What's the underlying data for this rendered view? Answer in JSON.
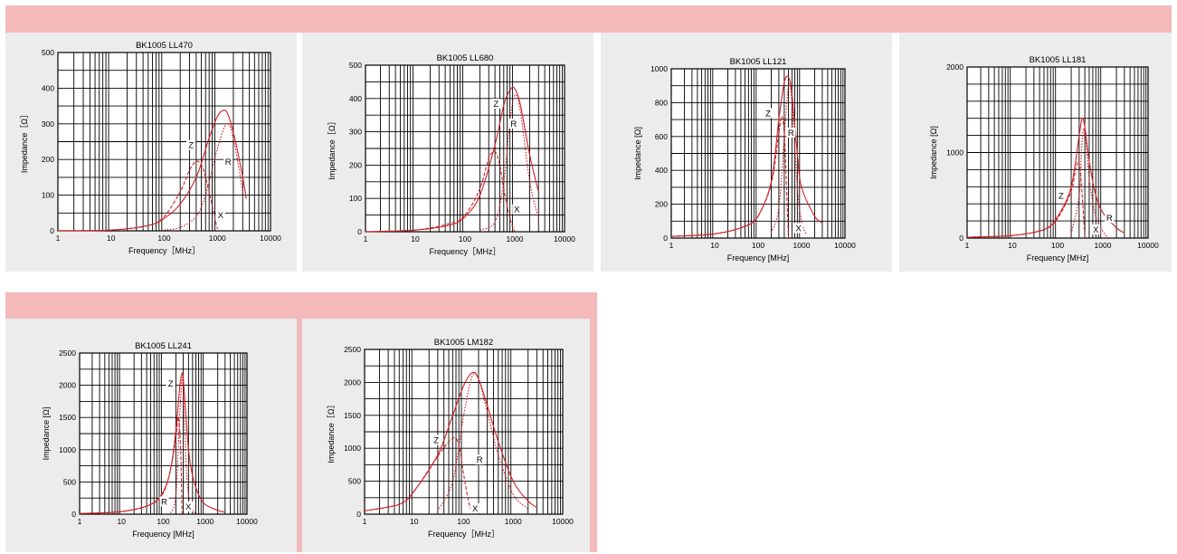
{
  "colors": {
    "band": "#f4b9ba",
    "panel": "#ececec",
    "curve": "#d11f26",
    "grid": "#000000"
  },
  "chart_data": [
    {
      "type": "line",
      "title": "BK1005  LL470",
      "xlabel": "Frequency［MHz］",
      "ylabel": "Impedance［Ω］",
      "x_scale": "log",
      "xlim": [
        1,
        10000
      ],
      "ylim": [
        0,
        500
      ],
      "x_ticks": [
        {
          "v": 1,
          "l": "1"
        },
        {
          "v": 10,
          "l": "10"
        },
        {
          "v": 100,
          "l": "100"
        },
        {
          "v": 1000,
          "l": "1000"
        },
        {
          "v": 10000,
          "l": "10000"
        }
      ],
      "y_ticks": [
        {
          "v": 0,
          "l": "0"
        },
        {
          "v": 100,
          "l": "100"
        },
        {
          "v": 200,
          "l": "200"
        },
        {
          "v": 300,
          "l": "300"
        },
        {
          "v": 400,
          "l": "400"
        },
        {
          "v": 500,
          "l": "500"
        }
      ],
      "series": [
        {
          "name": "Z",
          "style": "solid",
          "x": [
            1,
            10,
            50,
            100,
            200,
            400,
            700,
            1000,
            1300,
            1600,
            2200,
            3000,
            3500
          ],
          "y": [
            0,
            2,
            15,
            35,
            75,
            150,
            260,
            320,
            338,
            325,
            250,
            150,
            90
          ]
        },
        {
          "name": "R",
          "style": "dotted",
          "x": [
            100,
            200,
            400,
            600,
            1000,
            1500,
            2000,
            3000
          ],
          "y": [
            2,
            10,
            40,
            100,
            230,
            300,
            260,
            110
          ]
        },
        {
          "name": "X",
          "style": "dashed",
          "x": [
            1,
            10,
            50,
            100,
            200,
            300,
            400,
            500,
            600,
            700,
            800,
            1000
          ],
          "y": [
            0,
            2,
            15,
            40,
            110,
            170,
            195,
            185,
            150,
            110,
            70,
            5
          ]
        }
      ],
      "curve_labels": [
        {
          "t": "Z",
          "x": 320,
          "y": 232
        },
        {
          "t": "R",
          "x": 1600,
          "y": 185
        },
        {
          "t": "X",
          "x": 1150,
          "y": 35
        }
      ]
    },
    {
      "type": "line",
      "title": "BK1005  LL680",
      "xlabel": "Frequency［MHz］",
      "ylabel": "Impedance［Ω］",
      "x_scale": "log",
      "xlim": [
        1,
        10000
      ],
      "ylim": [
        0,
        500
      ],
      "x_ticks": [
        {
          "v": 1,
          "l": "1"
        },
        {
          "v": 10,
          "l": "10"
        },
        {
          "v": 100,
          "l": "100"
        },
        {
          "v": 1000,
          "l": "1000"
        },
        {
          "v": 10000,
          "l": "10000"
        }
      ],
      "y_ticks": [
        {
          "v": 0,
          "l": "0"
        },
        {
          "v": 100,
          "l": "100"
        },
        {
          "v": 200,
          "l": "200"
        },
        {
          "v": 300,
          "l": "300"
        },
        {
          "v": 400,
          "l": "400"
        },
        {
          "v": 500,
          "l": "500"
        }
      ],
      "series": [
        {
          "name": "Z",
          "style": "solid",
          "x": [
            1,
            10,
            50,
            100,
            200,
            400,
            600,
            800,
            1000,
            1300,
            2000,
            3000
          ],
          "y": [
            0,
            5,
            20,
            45,
            110,
            260,
            380,
            425,
            430,
            380,
            230,
            120
          ]
        },
        {
          "name": "R",
          "style": "dotted",
          "x": [
            200,
            400,
            600,
            800,
            1000,
            1300,
            2000,
            3000
          ],
          "y": [
            5,
            30,
            150,
            330,
            410,
            360,
            150,
            40
          ]
        },
        {
          "name": "X",
          "style": "dashed",
          "x": [
            1,
            10,
            50,
            100,
            200,
            300,
            400,
            500,
            600,
            800,
            1000
          ],
          "y": [
            0,
            5,
            25,
            50,
            130,
            220,
            240,
            200,
            130,
            40,
            0
          ]
        }
      ],
      "curve_labels": [
        {
          "t": "Z",
          "x": 420,
          "y": 375
        },
        {
          "t": "R",
          "x": 950,
          "y": 315
        },
        {
          "t": "X",
          "x": 1100,
          "y": 58
        }
      ]
    },
    {
      "type": "line",
      "title": "BK1005 LL121",
      "xlabel": "Frequency [MHz]",
      "ylabel": "Impedance [Ω]",
      "x_scale": "log",
      "xlim": [
        1,
        10000
      ],
      "ylim": [
        0,
        1000
      ],
      "x_ticks": [
        {
          "v": 1,
          "l": "1"
        },
        {
          "v": 10,
          "l": "10"
        },
        {
          "v": 100,
          "l": "100"
        },
        {
          "v": 1000,
          "l": "1000"
        },
        {
          "v": 10000,
          "l": "10000"
        }
      ],
      "y_ticks": [
        {
          "v": 0,
          "l": "0"
        },
        {
          "v": 200,
          "l": "200"
        },
        {
          "v": 400,
          "l": "400"
        },
        {
          "v": 600,
          "l": "600"
        },
        {
          "v": 800,
          "l": "800"
        },
        {
          "v": 1000,
          "l": "1000"
        }
      ],
      "series": [
        {
          "name": "Z",
          "style": "solid",
          "x": [
            1,
            10,
            50,
            100,
            200,
            300,
            400,
            500,
            600,
            800,
            1000,
            2000,
            3000
          ],
          "y": [
            10,
            25,
            70,
            130,
            330,
            700,
            920,
            950,
            850,
            500,
            300,
            130,
            90
          ]
        },
        {
          "name": "R",
          "style": "dotted",
          "x": [
            200,
            300,
            400,
            500,
            600,
            800,
            1000,
            1300
          ],
          "y": [
            30,
            180,
            600,
            900,
            800,
            300,
            100,
            20
          ]
        },
        {
          "name": "X",
          "style": "dashed",
          "x": [
            1,
            10,
            50,
            100,
            200,
            300,
            350,
            400,
            450,
            500
          ],
          "y": [
            10,
            25,
            70,
            130,
            320,
            620,
            720,
            620,
            300,
            0
          ]
        }
      ],
      "curve_labels": [
        {
          "t": "Z",
          "x": 170,
          "y": 720
        },
        {
          "t": "R",
          "x": 570,
          "y": 605
        },
        {
          "t": "X",
          "x": 850,
          "y": 40
        }
      ]
    },
    {
      "type": "line",
      "title": "BK1005 LL181",
      "xlabel": "Frequency [MHz]",
      "ylabel": "Impedance [Ω]",
      "x_scale": "log",
      "xlim": [
        1,
        10000
      ],
      "ylim": [
        0,
        2000
      ],
      "x_ticks": [
        {
          "v": 1,
          "l": "1"
        },
        {
          "v": 10,
          "l": "10"
        },
        {
          "v": 100,
          "l": "100"
        },
        {
          "v": 1000,
          "l": "1000"
        },
        {
          "v": 10000,
          "l": "10000"
        }
      ],
      "y_ticks": [
        {
          "v": 0,
          "l": "0"
        },
        {
          "v": 1000,
          "l": "1000"
        },
        {
          "v": 2000,
          "l": "2000"
        }
      ],
      "series": [
        {
          "name": "Z",
          "style": "solid",
          "x": [
            1,
            10,
            50,
            100,
            200,
            300,
            350,
            400,
            500,
            700,
            1000,
            2000,
            3000
          ],
          "y": [
            10,
            30,
            100,
            250,
            600,
            1200,
            1400,
            1300,
            900,
            500,
            300,
            120,
            60
          ]
        },
        {
          "name": "R",
          "style": "dotted",
          "x": [
            200,
            300,
            350,
            400,
            500,
            700,
            1000,
            1300
          ],
          "y": [
            50,
            500,
            1150,
            1250,
            700,
            250,
            80,
            10
          ]
        },
        {
          "name": "X",
          "style": "dashed",
          "x": [
            1,
            10,
            50,
            100,
            200,
            250,
            300,
            350,
            400
          ],
          "y": [
            10,
            30,
            100,
            230,
            550,
            800,
            880,
            500,
            0
          ]
        }
      ],
      "curve_labels": [
        {
          "t": "Z",
          "x": 120,
          "y": 460
        },
        {
          "t": "R",
          "x": 1400,
          "y": 200
        },
        {
          "t": "X",
          "x": 700,
          "y": 65
        }
      ]
    },
    {
      "type": "line",
      "title": "BK1005 LL241",
      "xlabel": "Frequency [MHz]",
      "ylabel": "Impedance [Ω]",
      "x_scale": "log",
      "xlim": [
        1,
        10000
      ],
      "ylim": [
        0,
        2500
      ],
      "x_ticks": [
        {
          "v": 1,
          "l": "1"
        },
        {
          "v": 10,
          "l": "10"
        },
        {
          "v": 100,
          "l": "100"
        },
        {
          "v": 1000,
          "l": "1000"
        },
        {
          "v": 10000,
          "l": "10000"
        }
      ],
      "y_ticks": [
        {
          "v": 0,
          "l": "0"
        },
        {
          "v": 500,
          "l": "500"
        },
        {
          "v": 1000,
          "l": "1000"
        },
        {
          "v": 1500,
          "l": "1500"
        },
        {
          "v": 2000,
          "l": "2000"
        },
        {
          "v": 2500,
          "l": "2500"
        }
      ],
      "series": [
        {
          "name": "Z",
          "style": "solid",
          "x": [
            1,
            10,
            50,
            100,
            150,
            200,
            250,
            280,
            300,
            350,
            400,
            500,
            700,
            1000,
            2000,
            3000
          ],
          "y": [
            10,
            40,
            150,
            350,
            700,
            1300,
            2000,
            2180,
            2100,
            1500,
            1000,
            600,
            300,
            150,
            60,
            30
          ]
        },
        {
          "name": "R",
          "style": "dotted",
          "x": [
            150,
            200,
            250,
            280,
            300,
            350,
            400,
            500,
            600
          ],
          "y": [
            20,
            300,
            1600,
            2100,
            1900,
            800,
            300,
            80,
            10
          ]
        },
        {
          "name": "X",
          "style": "dashed",
          "x": [
            1,
            10,
            50,
            100,
            150,
            200,
            230,
            260,
            280
          ],
          "y": [
            10,
            40,
            150,
            330,
            700,
            1200,
            1500,
            1000,
            0
          ]
        }
      ],
      "curve_labels": [
        {
          "t": "Z",
          "x": 150,
          "y": 1980
        },
        {
          "t": "R",
          "x": 105,
          "y": 150
        },
        {
          "t": "X",
          "x": 400,
          "y": 70
        }
      ]
    },
    {
      "type": "line",
      "title": "BK1005  LM182",
      "xlabel": "Frequency［MHz］",
      "ylabel": "Impedance［Ω］",
      "x_scale": "log",
      "xlim": [
        1,
        10000
      ],
      "ylim": [
        0,
        2500
      ],
      "x_ticks": [
        {
          "v": 1,
          "l": "1"
        },
        {
          "v": 10,
          "l": "10"
        },
        {
          "v": 100,
          "l": "100"
        },
        {
          "v": 1000,
          "l": "1000"
        },
        {
          "v": 10000,
          "l": "10000"
        }
      ],
      "y_ticks": [
        {
          "v": 0,
          "l": "0"
        },
        {
          "v": 500,
          "l": "500"
        },
        {
          "v": 1000,
          "l": "1000"
        },
        {
          "v": 1500,
          "l": "1500"
        },
        {
          "v": 2000,
          "l": "2000"
        },
        {
          "v": 2500,
          "l": "2500"
        }
      ],
      "series": [
        {
          "name": "Z",
          "style": "solid",
          "x": [
            1,
            5,
            10,
            30,
            60,
            100,
            150,
            200,
            300,
            500,
            1000,
            2000,
            3000
          ],
          "y": [
            50,
            150,
            350,
            900,
            1500,
            1950,
            2150,
            2050,
            1650,
            1100,
            500,
            200,
            100
          ]
        },
        {
          "name": "R",
          "style": "dotted",
          "x": [
            30,
            60,
            100,
            150,
            200,
            300,
            500,
            1000,
            2000
          ],
          "y": [
            50,
            500,
            1500,
            2100,
            2050,
            1550,
            900,
            300,
            80
          ]
        },
        {
          "name": "X",
          "style": "dashed",
          "x": [
            1,
            5,
            10,
            30,
            60,
            80,
            100,
            130,
            160
          ],
          "y": [
            50,
            150,
            350,
            880,
            1150,
            1050,
            600,
            150,
            0
          ]
        }
      ],
      "curve_labels": [
        {
          "t": "Z",
          "x": 28,
          "y": 1080
        },
        {
          "t": "R",
          "x": 210,
          "y": 780
        },
        {
          "t": "X",
          "x": 170,
          "y": 40
        }
      ]
    }
  ]
}
